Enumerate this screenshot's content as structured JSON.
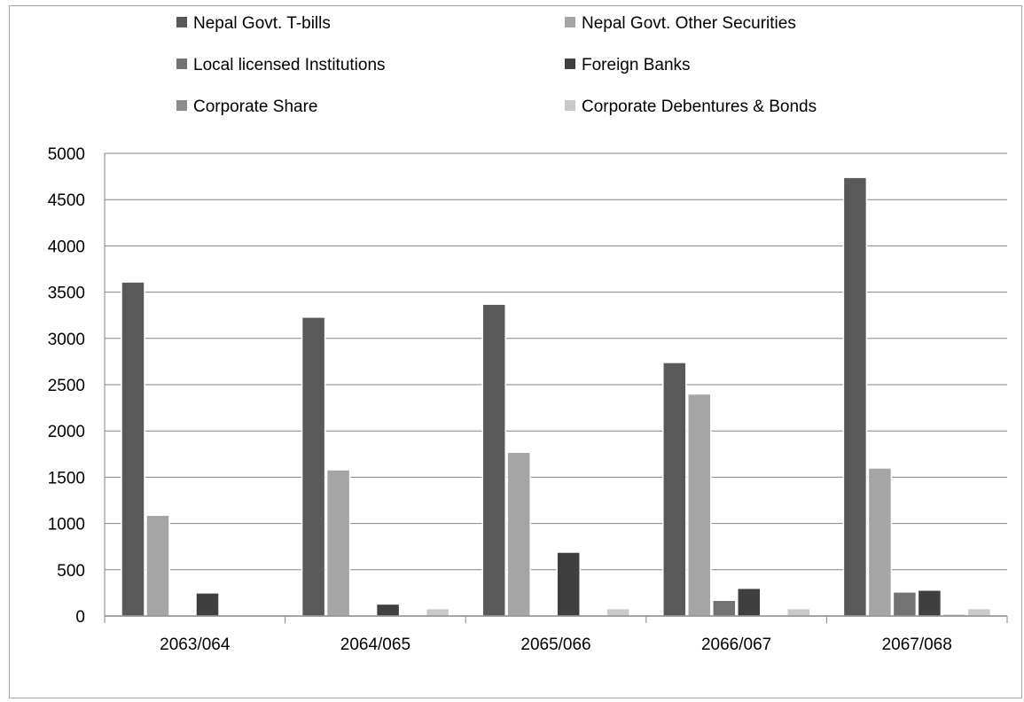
{
  "chart_data": {
    "type": "bar",
    "title": "",
    "xlabel": "",
    "ylabel": "",
    "categories": [
      "2063/064",
      "2064/065",
      "2065/066",
      "2066/067",
      "2067/068"
    ],
    "ylim": [
      0,
      5000
    ],
    "yticks": [
      0,
      500,
      1000,
      1500,
      2000,
      2500,
      3000,
      3500,
      4000,
      4500,
      5000
    ],
    "grid": true,
    "legend_position": "top",
    "series": [
      {
        "name": "Nepal Govt. T-bills",
        "color": "#595959",
        "values": [
          3610,
          3230,
          3370,
          2740,
          4740
        ]
      },
      {
        "name": "Nepal Govt. Other Securities",
        "color": "#a5a5a5",
        "values": [
          1090,
          1580,
          1770,
          2400,
          1600
        ]
      },
      {
        "name": "Local licensed Institutions",
        "color": "#737373",
        "values": [
          0,
          0,
          0,
          170,
          260
        ]
      },
      {
        "name": "Foreign Banks",
        "color": "#3f3f3f",
        "values": [
          250,
          130,
          690,
          300,
          280
        ]
      },
      {
        "name": "Corporate Share",
        "color": "#8c8c8c",
        "values": [
          10,
          5,
          5,
          5,
          20
        ]
      },
      {
        "name": "Corporate Debentures & Bonds",
        "color": "#c9c9c9",
        "values": [
          5,
          80,
          80,
          80,
          80
        ]
      }
    ]
  }
}
